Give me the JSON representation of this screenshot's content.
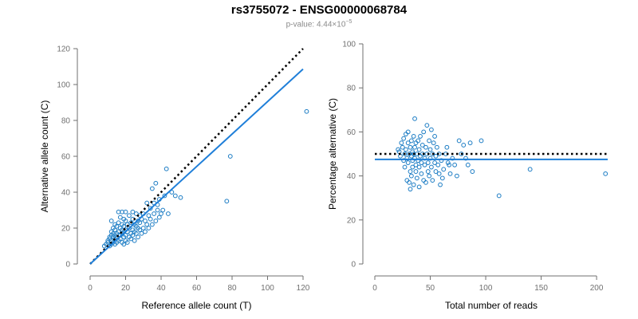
{
  "header": {
    "title": "rs3755072 - ENSG00000068784",
    "pvalue_text": "p-value: 4.44×10",
    "pvalue_exp": "−5"
  },
  "colors": {
    "series": "#1f7fd9",
    "points": "#1b7cc4",
    "reference_line": "#000000",
    "axis": "#6f6f6f"
  },
  "chart_data": [
    {
      "type": "scatter",
      "xlabel": "Reference allele count (T)",
      "ylabel": "Alternative allele count (C)",
      "xlim": [
        0,
        120
      ],
      "ylim": [
        0,
        120
      ],
      "xticks": [
        0,
        20,
        40,
        60,
        80,
        100,
        120
      ],
      "yticks": [
        0,
        20,
        40,
        60,
        80,
        100,
        120
      ],
      "grid": false,
      "reference_line": {
        "style": "dotted",
        "slope": 1,
        "intercept": 0
      },
      "fit_line": {
        "slope": 0.905,
        "intercept": 0
      },
      "points": [
        [
          8,
          10
        ],
        [
          9,
          11
        ],
        [
          10,
          12
        ],
        [
          10,
          13
        ],
        [
          11,
          10
        ],
        [
          11,
          14
        ],
        [
          11,
          15
        ],
        [
          12,
          11
        ],
        [
          12,
          13
        ],
        [
          12,
          16
        ],
        [
          12,
          18
        ],
        [
          12,
          24
        ],
        [
          13,
          12
        ],
        [
          13,
          15
        ],
        [
          13,
          17
        ],
        [
          13,
          20
        ],
        [
          14,
          11
        ],
        [
          14,
          14
        ],
        [
          14,
          16
        ],
        [
          14,
          19
        ],
        [
          14,
          22
        ],
        [
          15,
          12
        ],
        [
          15,
          15
        ],
        [
          15,
          17
        ],
        [
          15,
          21
        ],
        [
          16,
          13
        ],
        [
          16,
          18
        ],
        [
          16,
          23
        ],
        [
          16,
          29
        ],
        [
          17,
          14
        ],
        [
          17,
          16
        ],
        [
          17,
          20
        ],
        [
          17,
          26
        ],
        [
          18,
          12
        ],
        [
          18,
          17
        ],
        [
          18,
          19
        ],
        [
          18,
          22
        ],
        [
          18,
          29
        ],
        [
          19,
          11
        ],
        [
          19,
          15
        ],
        [
          19,
          18
        ],
        [
          19,
          21
        ],
        [
          19,
          25
        ],
        [
          20,
          13
        ],
        [
          20,
          16
        ],
        [
          20,
          19
        ],
        [
          20,
          24
        ],
        [
          20,
          29
        ],
        [
          21,
          12
        ],
        [
          21,
          18
        ],
        [
          21,
          22
        ],
        [
          22,
          15
        ],
        [
          22,
          20
        ],
        [
          22,
          27
        ],
        [
          23,
          14
        ],
        [
          23,
          17
        ],
        [
          23,
          23
        ],
        [
          24,
          16
        ],
        [
          24,
          19
        ],
        [
          24,
          25
        ],
        [
          24,
          29
        ],
        [
          25,
          13
        ],
        [
          25,
          18
        ],
        [
          25,
          22
        ],
        [
          26,
          17
        ],
        [
          26,
          21
        ],
        [
          26,
          28
        ],
        [
          27,
          15
        ],
        [
          27,
          20
        ],
        [
          27,
          24
        ],
        [
          28,
          19
        ],
        [
          28,
          23
        ],
        [
          28,
          27
        ],
        [
          29,
          17
        ],
        [
          29,
          25
        ],
        [
          30,
          20
        ],
        [
          30,
          28
        ],
        [
          31,
          18
        ],
        [
          31,
          24
        ],
        [
          32,
          22
        ],
        [
          32,
          34
        ],
        [
          33,
          20
        ],
        [
          33,
          27
        ],
        [
          34,
          25
        ],
        [
          34,
          31
        ],
        [
          35,
          22
        ],
        [
          35,
          42
        ],
        [
          36,
          28
        ],
        [
          36,
          34
        ],
        [
          37,
          24
        ],
        [
          37,
          45
        ],
        [
          38,
          30
        ],
        [
          38,
          33
        ],
        [
          39,
          26
        ],
        [
          39,
          36
        ],
        [
          40,
          28
        ],
        [
          41,
          30
        ],
        [
          42,
          38
        ],
        [
          43,
          53
        ],
        [
          44,
          28
        ],
        [
          46,
          40
        ],
        [
          48,
          38
        ],
        [
          51,
          37
        ],
        [
          77,
          35
        ],
        [
          79,
          60
        ],
        [
          122,
          85
        ]
      ]
    },
    {
      "type": "scatter",
      "xlabel": "Total number of reads",
      "ylabel": "Percentage alternative (C)",
      "xlim": [
        0,
        210
      ],
      "ylim": [
        0,
        100
      ],
      "xticks": [
        0,
        50,
        100,
        150,
        200
      ],
      "yticks": [
        0,
        20,
        40,
        60,
        80,
        100
      ],
      "grid": false,
      "reference_line": {
        "style": "dotted",
        "y": 50
      },
      "fit_line": {
        "y": 47.5
      },
      "points": [
        [
          21,
          52
        ],
        [
          22,
          51
        ],
        [
          23,
          49
        ],
        [
          24,
          55
        ],
        [
          25,
          53
        ],
        [
          26,
          47
        ],
        [
          26,
          57
        ],
        [
          27,
          50
        ],
        [
          27,
          44
        ],
        [
          28,
          52
        ],
        [
          28,
          59
        ],
        [
          29,
          48
        ],
        [
          29,
          38
        ],
        [
          30,
          55
        ],
        [
          30,
          46
        ],
        [
          30,
          60
        ],
        [
          31,
          50
        ],
        [
          31,
          37
        ],
        [
          32,
          53
        ],
        [
          32,
          42
        ],
        [
          32,
          34
        ],
        [
          33,
          49
        ],
        [
          33,
          56
        ],
        [
          33,
          40
        ],
        [
          34,
          51
        ],
        [
          34,
          47
        ],
        [
          34,
          44
        ],
        [
          35,
          58
        ],
        [
          35,
          50
        ],
        [
          35,
          36
        ],
        [
          36,
          53
        ],
        [
          36,
          48
        ],
        [
          36,
          66
        ],
        [
          37,
          45
        ],
        [
          37,
          42
        ],
        [
          37,
          55
        ],
        [
          38,
          50
        ],
        [
          38,
          39
        ],
        [
          39,
          56
        ],
        [
          39,
          47
        ],
        [
          40,
          52
        ],
        [
          40,
          44
        ],
        [
          40,
          35
        ],
        [
          41,
          49
        ],
        [
          41,
          58
        ],
        [
          42,
          46
        ],
        [
          42,
          41
        ],
        [
          43,
          54
        ],
        [
          43,
          50
        ],
        [
          44,
          38
        ],
        [
          44,
          60
        ],
        [
          45,
          48
        ],
        [
          45,
          45
        ],
        [
          46,
          53
        ],
        [
          46,
          37
        ],
        [
          47,
          63
        ],
        [
          47,
          50
        ],
        [
          48,
          46
        ],
        [
          48,
          42
        ],
        [
          49,
          56
        ],
        [
          49,
          40
        ],
        [
          50,
          52
        ],
        [
          50,
          48
        ],
        [
          51,
          44
        ],
        [
          51,
          61
        ],
        [
          52,
          38
        ],
        [
          52,
          50
        ],
        [
          53,
          55
        ],
        [
          54,
          46
        ],
        [
          54,
          58
        ],
        [
          55,
          42
        ],
        [
          55,
          49
        ],
        [
          56,
          53
        ],
        [
          57,
          45
        ],
        [
          58,
          41
        ],
        [
          58,
          50
        ],
        [
          59,
          36
        ],
        [
          60,
          47
        ],
        [
          61,
          39
        ],
        [
          62,
          43
        ],
        [
          64,
          50
        ],
        [
          65,
          53
        ],
        [
          66,
          46
        ],
        [
          67,
          45
        ],
        [
          68,
          41
        ],
        [
          70,
          48
        ],
        [
          72,
          45
        ],
        [
          74,
          40
        ],
        [
          76,
          56
        ],
        [
          78,
          50
        ],
        [
          80,
          54
        ],
        [
          82,
          48
        ],
        [
          84,
          45
        ],
        [
          86,
          55
        ],
        [
          88,
          42
        ],
        [
          96,
          56
        ],
        [
          112,
          31
        ],
        [
          140,
          43
        ],
        [
          208,
          41
        ]
      ]
    }
  ]
}
